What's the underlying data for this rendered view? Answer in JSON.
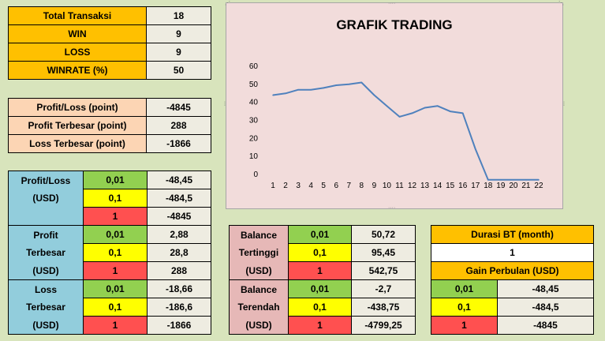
{
  "summary": {
    "total_label": "Total Transaksi",
    "total_value": "18",
    "win_label": "WIN",
    "win_value": "9",
    "loss_label": "LOSS",
    "loss_value": "9",
    "winrate_label": "WINRATE (%)",
    "winrate_value": "50"
  },
  "points": {
    "pl_label": "Profit/Loss (point)",
    "pl_value": "-4845",
    "max_label": "Profit Terbesar (point)",
    "max_value": "288",
    "min_label": "Loss Terbesar (point)",
    "min_value": "-1866"
  },
  "usd": {
    "pl_label_1": "Profit/Loss",
    "pl_label_2": "(USD)",
    "pl_rows": [
      {
        "lot": "0,01",
        "value": "-48,45"
      },
      {
        "lot": "0,1",
        "value": "-484,5"
      },
      {
        "lot": "1",
        "value": "-4845"
      }
    ],
    "profit_label_1": "Profit",
    "profit_label_2": "Terbesar",
    "profit_label_3": "(USD)",
    "profit_rows": [
      {
        "lot": "0,01",
        "value": "2,88"
      },
      {
        "lot": "0,1",
        "value": "28,8"
      },
      {
        "lot": "1",
        "value": "288"
      }
    ],
    "loss_label_1": "Loss",
    "loss_label_2": "Terbesar",
    "loss_label_3": "(USD)",
    "loss_rows": [
      {
        "lot": "0,01",
        "value": "-18,66"
      },
      {
        "lot": "0,1",
        "value": "-186,6"
      },
      {
        "lot": "1",
        "value": "-1866"
      }
    ]
  },
  "balance": {
    "high_label_1": "Balance",
    "high_label_2": "Tertinggi",
    "high_label_3": "(USD)",
    "high_rows": [
      {
        "lot": "0,01",
        "value": "50,72"
      },
      {
        "lot": "0,1",
        "value": "95,45"
      },
      {
        "lot": "1",
        "value": "542,75"
      }
    ],
    "low_label_1": "Balance",
    "low_label_2": "Terendah",
    "low_label_3": "(USD)",
    "low_rows": [
      {
        "lot": "0,01",
        "value": "-2,7"
      },
      {
        "lot": "0,1",
        "value": "-438,75"
      },
      {
        "lot": "1",
        "value": "-4799,25"
      }
    ]
  },
  "duration": {
    "label": "Durasi BT (month)",
    "value": "1",
    "gain_label": "Gain Perbulan (USD)",
    "gain_rows": [
      {
        "lot": "0,01",
        "value": "-48,45"
      },
      {
        "lot": "0,1",
        "value": "-484,5"
      },
      {
        "lot": "1",
        "value": "-4845"
      }
    ]
  },
  "colors": {
    "background": "#d8e4bc",
    "orange": "#ffc000",
    "green": "#92d050",
    "yellow": "#ffff00",
    "red": "#ff5050",
    "blue": "#92cddc",
    "pink": "#e6b8b7",
    "peach": "#fcd5b4",
    "line": "#4f81bd",
    "plot_bg": "#f2dcdb"
  },
  "chart_data": {
    "type": "line",
    "title": "GRAFIK TRADING",
    "x": [
      1,
      2,
      3,
      4,
      5,
      6,
      7,
      8,
      9,
      10,
      11,
      12,
      13,
      14,
      15,
      16,
      17,
      18,
      19,
      20,
      21,
      22
    ],
    "series": [
      {
        "values": [
          44,
          45,
          47,
          47,
          48,
          49.5,
          50,
          51,
          44,
          38,
          32,
          34,
          37,
          38,
          35,
          34,
          14,
          -3,
          -3,
          -3,
          -3,
          -3
        ]
      }
    ],
    "ylim": [
      0,
      60
    ],
    "yticks": [
      0,
      10,
      20,
      30,
      40,
      50,
      60
    ],
    "grid": false,
    "legend": "none"
  }
}
